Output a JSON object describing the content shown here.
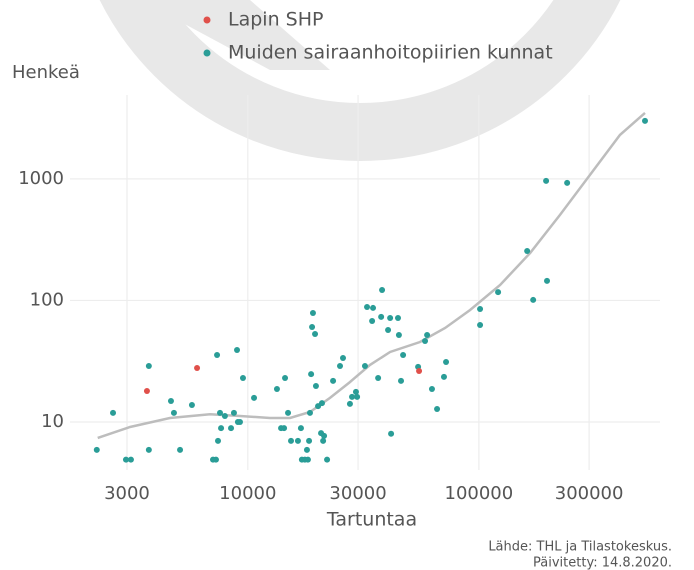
{
  "chart_data": {
    "type": "scatter",
    "y_label": "Henkeä",
    "x_label": "Tartuntaa",
    "source": "Lähde: THL ja Tilastokeskus.",
    "updated": "Päivitetty: 14.8.2020.",
    "log_x": true,
    "log_y": true,
    "grid": true,
    "xlim": [
      1700,
      608000
    ],
    "ylim": [
      4.03,
      4900
    ],
    "xticks": [
      3000,
      10000,
      30000,
      100000,
      300000
    ],
    "yticks": [
      10,
      100,
      1000
    ],
    "series": [
      {
        "name": "Lapin SHP",
        "color": "#e0504a",
        "x": [
          3660,
          6030,
          55100
        ],
        "values": [
          18.0,
          27.8,
          26.3
        ]
      },
      {
        "name": "Muiden sairaanhoitopiirien kunnat",
        "color": "#2a9d97",
        "x": [
          2220,
          2610,
          2970,
          3120,
          3730,
          3730,
          4650,
          4790,
          5090,
          5730,
          7070,
          7280,
          7360,
          7430,
          7580,
          7660,
          7960,
          8460,
          8710,
          8980,
          9060,
          9250,
          9530,
          10640,
          13370,
          13930,
          14350,
          14490,
          14930,
          15380,
          16480,
          16980,
          17140,
          17660,
          18200,
          18030,
          18410,
          18580,
          18790,
          18970,
          19140,
          19540,
          19720,
          20140,
          20750,
          20940,
          21180,
          21380,
          22030,
          23390,
          25060,
          25820,
          27670,
          28250,
          29380,
          29720,
          32140,
          32810,
          34510,
          34830,
          36640,
          37760,
          38110,
          40460,
          41300,
          41690,
          44670,
          45080,
          46030,
          46990,
          54580,
          58480,
          59700,
          62660,
          65920,
          70630,
          72100,
          101200,
          101200,
          121100,
          161800,
          171800,
          197200,
          195400,
          241000,
          523600
        ],
        "values": [
          5.9,
          11.9,
          4.9,
          4.9,
          28.9,
          5.9,
          14.9,
          11.9,
          5.9,
          13.8,
          4.9,
          4.9,
          35.6,
          7.0,
          11.9,
          8.9,
          11.2,
          8.9,
          11.9,
          39.1,
          10,
          10,
          23.0,
          15.8,
          18.7,
          8.9,
          8.9,
          23.0,
          11.9,
          7.0,
          7.0,
          8.9,
          4.9,
          4.9,
          4.9,
          5.9,
          7.0,
          11.9,
          24.8,
          60.5,
          78.9,
          53.0,
          19.8,
          13.5,
          8.1,
          14.3,
          7.0,
          7.7,
          4.9,
          21.8,
          28.9,
          33.6,
          14.1,
          16.1,
          17.7,
          16.1,
          28.9,
          88.4,
          67.8,
          86.8,
          23.0,
          73.2,
          122,
          57.2,
          71.8,
          8.0,
          71.8,
          52.0,
          21.8,
          35.6,
          28.4,
          46.4,
          52.0,
          18.7,
          12.8,
          23.5,
          31.2,
          85.1,
          62.8,
          117,
          255,
          101,
          145,
          963,
          927,
          3000
        ]
      }
    ],
    "trend": {
      "color": "#bdbdbd",
      "x": [
        2240,
        3090,
        4600,
        6860,
        9250,
        12470,
        15230,
        18580,
        22690,
        27670,
        33800,
        41300,
        55630,
        71400,
        91600,
        123600,
        166700,
        224500,
        302700,
        408300,
        523600
      ],
      "values": [
        7.4,
        9.1,
        10.8,
        11.6,
        11.2,
        10.8,
        10.8,
        12.1,
        15.8,
        21.3,
        29.5,
        37.7,
        45.5,
        59.4,
        83.5,
        134,
        246,
        506,
        1079,
        2302,
        3490
      ]
    }
  }
}
